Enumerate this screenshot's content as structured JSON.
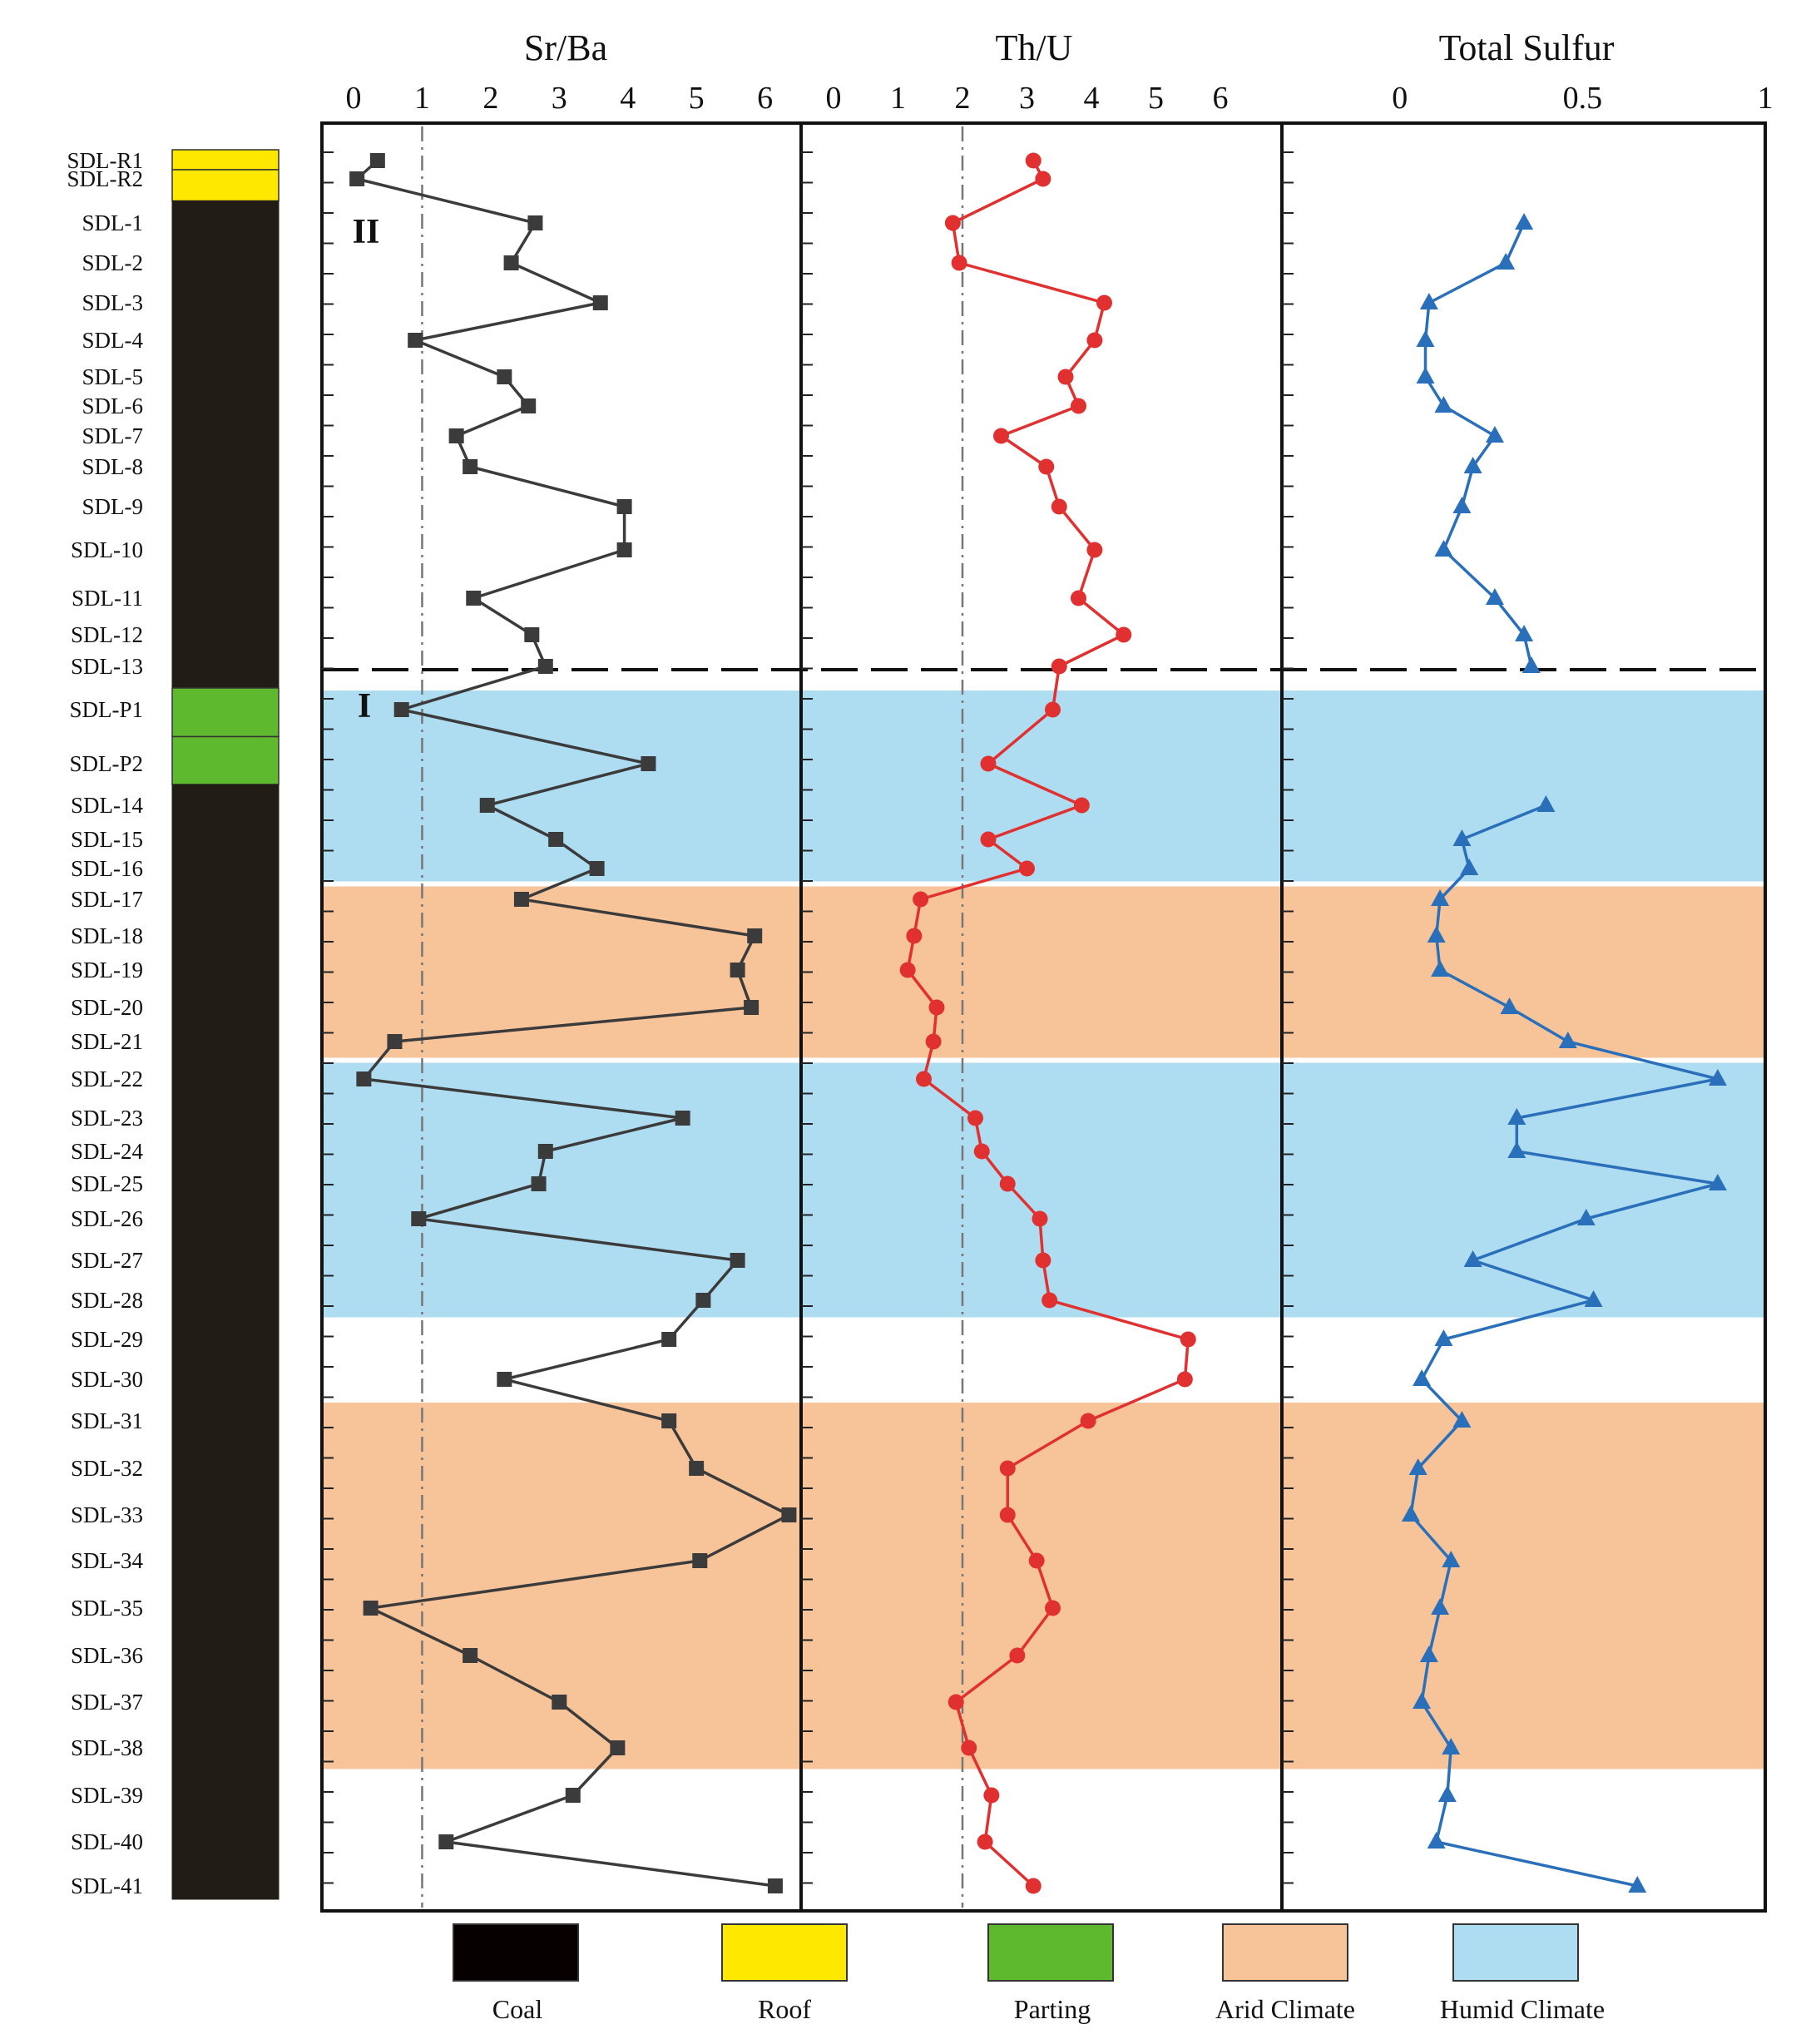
{
  "samples": [
    "SDL-R1",
    "SDL-R2",
    "SDL-1",
    "SDL-2",
    "SDL-3",
    "SDL-4",
    "SDL-5",
    "SDL-6",
    "SDL-7",
    "SDL-8",
    "SDL-9",
    "SDL-10",
    "SDL-11",
    "SDL-12",
    "SDL-13",
    "SDL-P1",
    "SDL-P2",
    "SDL-14",
    "SDL-15",
    "SDL-16",
    "SDL-17",
    "SDL-18",
    "SDL-19",
    "SDL-20",
    "SDL-21",
    "SDL-22",
    "SDL-23",
    "SDL-24",
    "SDL-25",
    "SDL-26",
    "SDL-27",
    "SDL-28",
    "SDL-29",
    "SDL-30",
    "SDL-31",
    "SDL-32",
    "SDL-33",
    "SDL-34",
    "SDL-35",
    "SDL-36",
    "SDL-37",
    "SDL-38",
    "SDL-39",
    "SDL-40",
    "SDL-41"
  ],
  "lithology": [
    {
      "type": "Roof",
      "from": "SDL-R1",
      "to": "SDL-R2"
    },
    {
      "type": "Coal",
      "from": "SDL-1",
      "to": "SDL-13"
    },
    {
      "type": "Parting",
      "from": "SDL-P1",
      "to": "SDL-P2"
    },
    {
      "type": "Coal",
      "from": "SDL-14",
      "to": "SDL-41"
    }
  ],
  "zones": [
    {
      "label": "II",
      "from": "SDL-R1",
      "to": "SDL-13"
    },
    {
      "label": "I",
      "from": "SDL-P1",
      "to": "SDL-41"
    }
  ],
  "climate_bands": [
    {
      "type": "Humid Climate",
      "from": "SDL-P1",
      "to": "SDL-16"
    },
    {
      "type": "Arid Climate",
      "from": "SDL-17",
      "to": "SDL-21"
    },
    {
      "type": "Humid Climate",
      "from": "SDL-22",
      "to": "SDL-28"
    },
    {
      "type": "Arid Climate",
      "from": "SDL-31",
      "to": "SDL-38"
    }
  ],
  "chart_data": [
    {
      "type": "line",
      "title": "Sr/Ba",
      "xlim": [
        0,
        7
      ],
      "xticks": [
        "0",
        "1",
        "2",
        "3",
        "4",
        "5",
        "6"
      ],
      "reference_line": 1,
      "values": [
        0.35,
        0.05,
        2.65,
        2.3,
        3.6,
        0.9,
        2.2,
        2.55,
        1.5,
        1.7,
        3.95,
        3.95,
        1.75,
        2.6,
        2.8,
        0.7,
        4.3,
        1.95,
        2.95,
        3.55,
        2.45,
        5.85,
        5.6,
        5.8,
        0.6,
        0.15,
        4.8,
        2.8,
        2.7,
        0.95,
        5.6,
        5.1,
        4.6,
        2.2,
        4.6,
        5.0,
        6.35,
        5.05,
        0.25,
        1.7,
        3.0,
        3.85,
        3.2,
        1.35,
        6.15
      ]
    },
    {
      "type": "line",
      "title": "Th/U",
      "xlim": [
        0,
        6.8
      ],
      "xticks": [
        "0",
        "1",
        "2",
        "3",
        "4",
        "5",
        "6"
      ],
      "reference_line": 2,
      "values": [
        3.1,
        3.25,
        1.85,
        1.95,
        4.2,
        4.05,
        3.6,
        3.8,
        2.6,
        3.3,
        3.5,
        4.05,
        3.8,
        4.5,
        3.5,
        3.4,
        2.4,
        3.85,
        2.4,
        3.0,
        1.35,
        1.25,
        1.15,
        1.6,
        1.55,
        1.4,
        2.2,
        2.3,
        2.7,
        3.2,
        3.25,
        3.35,
        5.5,
        5.45,
        3.95,
        2.7,
        2.7,
        3.15,
        3.4,
        2.85,
        1.9,
        2.1,
        2.45,
        2.35,
        3.1
      ]
    },
    {
      "type": "line",
      "title": "Total Sulfur",
      "xlim": [
        -0.35,
        1.0
      ],
      "xticks": [
        "0",
        "0.5",
        "1"
      ],
      "values": [
        null,
        null,
        0.34,
        0.29,
        0.08,
        0.07,
        0.07,
        0.12,
        0.26,
        0.2,
        0.17,
        0.12,
        0.26,
        0.34,
        0.36,
        null,
        null,
        0.4,
        0.17,
        0.19,
        0.11,
        0.1,
        0.11,
        0.3,
        0.46,
        0.87,
        0.32,
        0.32,
        0.87,
        0.51,
        0.2,
        0.53,
        0.12,
        0.06,
        0.17,
        0.05,
        0.03,
        0.14,
        0.11,
        0.08,
        0.06,
        0.14,
        0.13,
        0.1,
        0.65
      ]
    }
  ],
  "legend": [
    {
      "label": "Coal",
      "color": "#060000"
    },
    {
      "label": "Roof",
      "color": "#ffe800"
    },
    {
      "label": "Parting",
      "color": "#5fb92e"
    },
    {
      "label": "Arid Climate",
      "color": "#f7c49a"
    },
    {
      "label": "Humid Climate",
      "color": "#aedcf0"
    }
  ],
  "colors": {
    "srba": "#3b3b3b",
    "thu": "#e03030",
    "sulfur": "#2a6fba",
    "coal": "#221c17",
    "roof": "#ffe800",
    "parting": "#5fb92e",
    "arid": "#f7c49a",
    "humid": "#aedcf0"
  }
}
